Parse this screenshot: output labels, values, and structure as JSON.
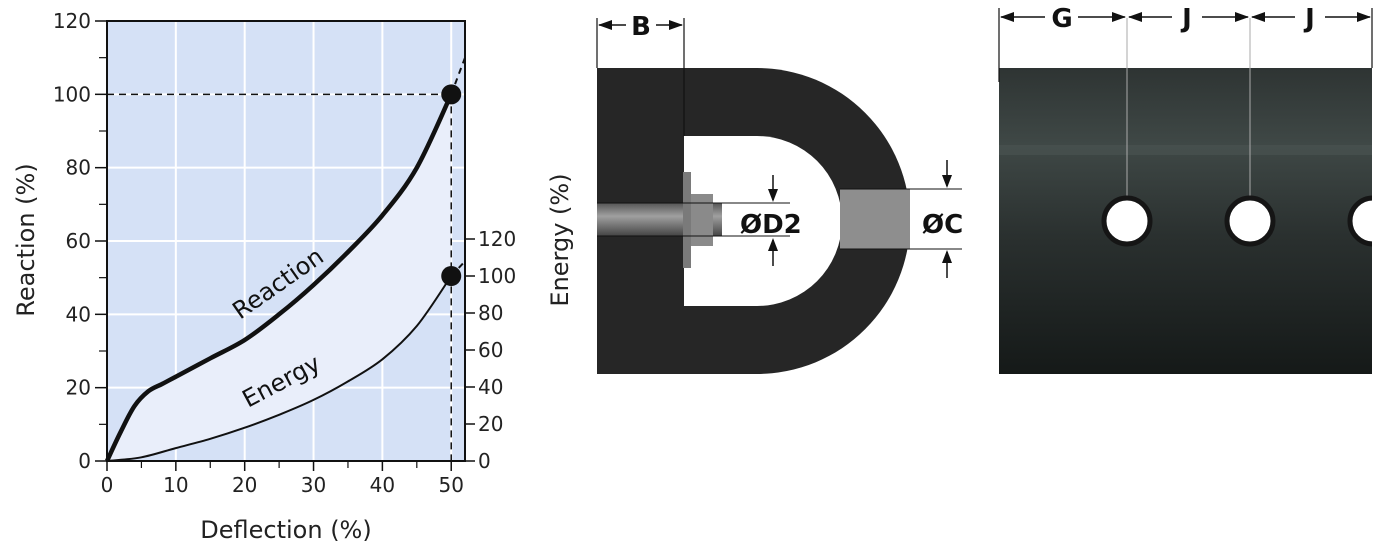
{
  "chart_data": {
    "type": "line",
    "xlabel": "Deflection (%)",
    "ylabel": "Reaction (%)",
    "y2label": "Energy (%)",
    "xlim": [
      0,
      52
    ],
    "ylim": [
      0,
      120
    ],
    "y2lim": [
      0,
      120
    ],
    "xticks": [
      "0",
      "10",
      "20",
      "30",
      "40",
      "50"
    ],
    "yticks": [
      "0",
      "20",
      "40",
      "60",
      "80",
      "100",
      "120"
    ],
    "y2ticks": [
      "0",
      "20",
      "40",
      "60",
      "80",
      "100",
      "120"
    ],
    "grid": true,
    "series": [
      {
        "name": "Reaction",
        "x": [
          0,
          2,
          4,
          6,
          8,
          10,
          15,
          20,
          25,
          30,
          35,
          40,
          45,
          50,
          52
        ],
        "y": [
          0,
          8,
          15,
          19,
          21,
          23,
          28,
          33,
          40,
          48,
          57,
          67,
          80,
          100,
          110
        ]
      },
      {
        "name": "Energy",
        "x": [
          0,
          5,
          10,
          15,
          20,
          25,
          30,
          35,
          40,
          45,
          50,
          52
        ],
        "y2": [
          0,
          2,
          7,
          12,
          18,
          25,
          33,
          43,
          55,
          73,
          100,
          108
        ]
      }
    ],
    "markers": [
      {
        "x": 50,
        "y": 100
      },
      {
        "x": 50,
        "y2": 100
      }
    ]
  },
  "diagram": {
    "fender_labels": {
      "b": "B",
      "d2": "ØD2",
      "c": "ØC"
    },
    "tube_labels": {
      "g": "G",
      "j1": "J",
      "j2": "J"
    }
  }
}
